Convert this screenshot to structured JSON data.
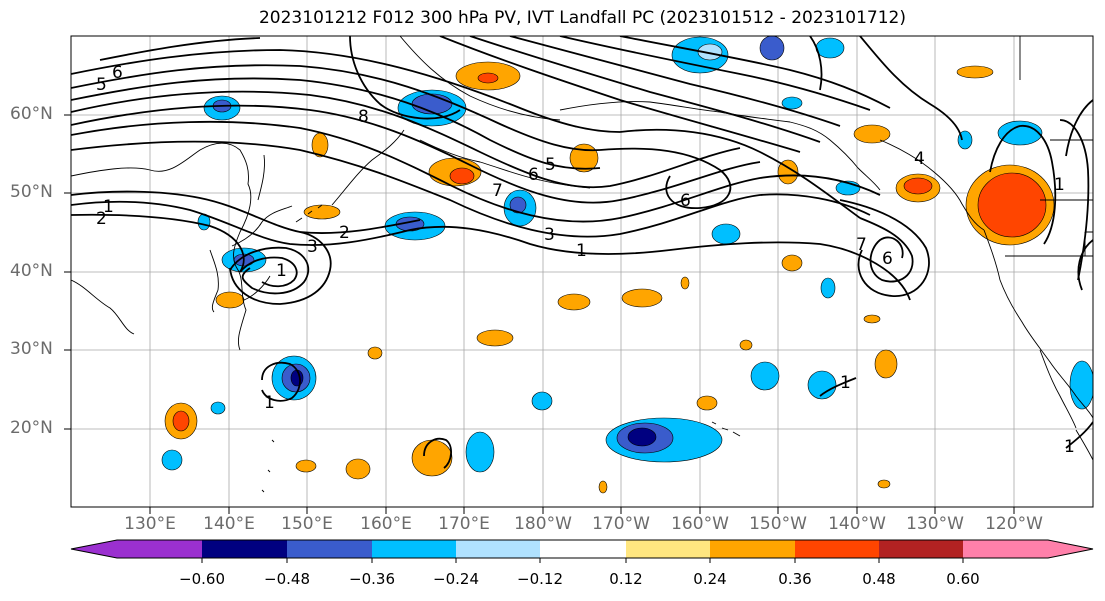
{
  "title": "2023101212 F012 300 hPa PV, IVT Landfall PC (2023101512 - 2023101712)",
  "map": {
    "lat_labels": [
      "60°N",
      "50°N",
      "40°N",
      "30°N",
      "20°N"
    ],
    "lon_labels": [
      "130°E",
      "140°E",
      "150°E",
      "160°E",
      "170°E",
      "180°W",
      "170°W",
      "160°W",
      "150°W",
      "140°W",
      "130°W",
      "120°W"
    ],
    "contour_labels": [
      "6",
      "5",
      "8",
      "1",
      "2",
      "3",
      "2",
      "1",
      "7",
      "6",
      "5",
      "6",
      "3",
      "1",
      "7",
      "6",
      "1",
      "1",
      "1",
      "1",
      "4"
    ]
  },
  "colorbar": {
    "ticks": [
      "−0.60",
      "−0.48",
      "−0.36",
      "−0.24",
      "−0.12",
      "0.12",
      "0.24",
      "0.36",
      "0.48",
      "0.60"
    ],
    "colors": [
      "#9b30d0",
      "#000080",
      "#3a5ccc",
      "#00bfff",
      "#b0e2ff",
      "#ffffff",
      "#ffe680",
      "#ffa500",
      "#ff4500",
      "#b22222",
      "#ff80aa"
    ]
  }
}
